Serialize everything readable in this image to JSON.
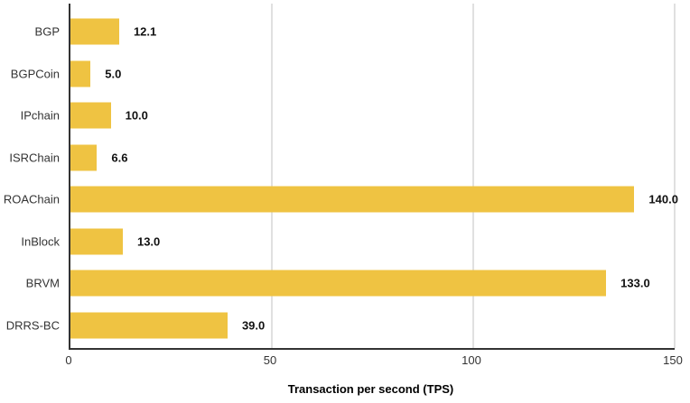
{
  "chart_data": {
    "type": "bar",
    "orientation": "horizontal",
    "title": "",
    "xlabel": "Transaction per second (TPS)",
    "ylabel": "",
    "categories": [
      "BGP",
      "BGPCoin",
      "IPchain",
      "ISRChain",
      "ROAChain",
      "InBlock",
      "BRVM",
      "DRRS-BC"
    ],
    "values": [
      12.1,
      5.0,
      10.0,
      6.6,
      140.0,
      13.0,
      133.0,
      39.0
    ],
    "value_labels": [
      "12.1",
      "5.0",
      "10.0",
      "6.6",
      "140.0",
      "13.0",
      "133.0",
      "39.0"
    ],
    "xlim": [
      0,
      150
    ],
    "x_ticks": [
      0,
      50,
      100,
      150
    ],
    "x_tick_labels": [
      "0",
      "50",
      "100",
      "150"
    ],
    "grid": true,
    "legend": false,
    "colors": {
      "bar": "#EFC342",
      "axis": "#333333",
      "gridline": "#E0E0E0",
      "category_text": "#333333",
      "value_text": "#111111",
      "background": "#FFFFFF"
    }
  }
}
